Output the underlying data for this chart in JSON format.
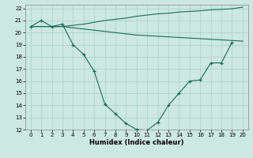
{
  "xlabel": "Humidex (Indice chaleur)",
  "xlim": [
    -0.5,
    20.5
  ],
  "ylim": [
    12,
    22.3
  ],
  "xticks": [
    0,
    1,
    2,
    3,
    4,
    5,
    6,
    7,
    8,
    9,
    10,
    11,
    12,
    13,
    14,
    15,
    16,
    17,
    18,
    19,
    20
  ],
  "yticks": [
    12,
    13,
    14,
    15,
    16,
    17,
    18,
    19,
    20,
    21,
    22
  ],
  "bg_color": "#cce8e0",
  "grid_color": "#aad0c8",
  "line_color": "#1a6b58",
  "line1": {
    "x": [
      0,
      1,
      2,
      3,
      4,
      5,
      6,
      7,
      8,
      9,
      10,
      11,
      12,
      13,
      14,
      15,
      16,
      17,
      18,
      19,
      20
    ],
    "y": [
      20.5,
      20.5,
      20.5,
      20.5,
      20.6,
      20.7,
      20.85,
      21.0,
      21.1,
      21.2,
      21.35,
      21.45,
      21.55,
      21.6,
      21.7,
      21.75,
      21.8,
      21.88,
      21.92,
      21.97,
      22.1
    ]
  },
  "line2": {
    "x": [
      0,
      1,
      2,
      3,
      4,
      5,
      6,
      7,
      8,
      9,
      10,
      11,
      12,
      13,
      14,
      15,
      16,
      17,
      18,
      19,
      20
    ],
    "y": [
      20.5,
      20.5,
      20.5,
      20.5,
      20.4,
      20.3,
      20.2,
      20.1,
      20.0,
      19.9,
      19.8,
      19.75,
      19.7,
      19.65,
      19.6,
      19.55,
      19.5,
      19.45,
      19.4,
      19.35,
      19.3
    ]
  },
  "line3": {
    "x": [
      0,
      1,
      2,
      3,
      4,
      5,
      6,
      7,
      8,
      9,
      10,
      11,
      12,
      13,
      14,
      15,
      16,
      17,
      18,
      19
    ],
    "y": [
      20.5,
      21.0,
      20.5,
      20.7,
      19.0,
      18.2,
      16.8,
      14.1,
      13.3,
      12.5,
      12.0,
      11.95,
      12.6,
      14.0,
      15.0,
      16.0,
      16.1,
      17.5,
      17.5,
      19.2
    ]
  }
}
